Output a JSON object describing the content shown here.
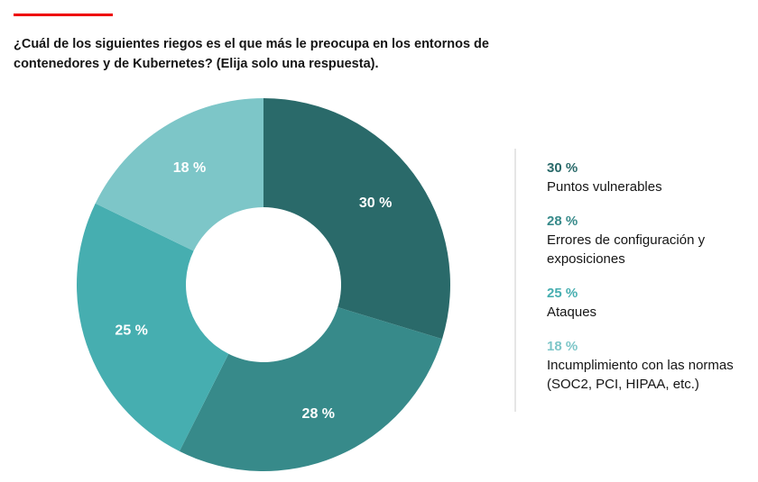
{
  "header": {
    "title": "¿Cuál de los siguientes riegos es el que más le preocupa en los entornos de contenedores y de Kubernetes? (Elija solo una respuesta)."
  },
  "accent_color": "#ee0000",
  "chart_data": {
    "type": "pie",
    "variant": "donut",
    "title": "",
    "start": "top",
    "direction": "clockwise",
    "categories": [
      "Puntos vulnerables",
      "Errores de configuración y exposiciones",
      "Ataques",
      "Incumplimiento con las normas (SOC2, PCI, HIPAA, etc.)"
    ],
    "values": [
      30,
      28,
      25,
      18
    ],
    "labels": [
      "30 %",
      "28 %",
      "25 %",
      "18 %"
    ],
    "colors": [
      "#2a6a6a",
      "#378a8a",
      "#46aeb0",
      "#7dc6c8"
    ],
    "legend_placement": "right"
  }
}
